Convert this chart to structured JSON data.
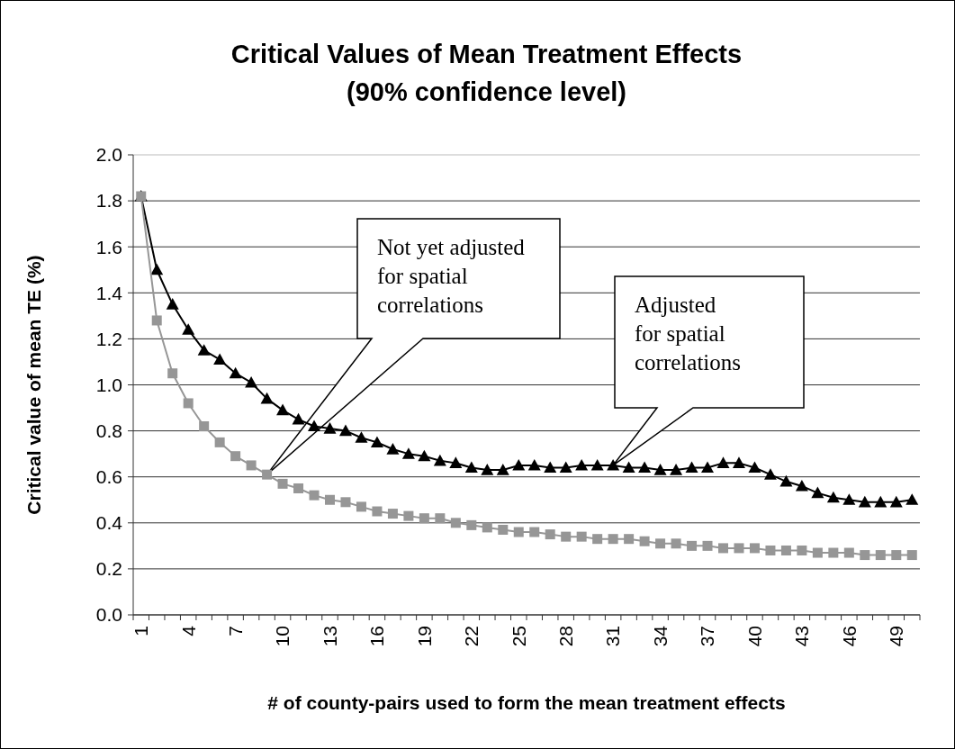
{
  "chart_data": {
    "type": "line",
    "title": "Critical Values of Mean Treatment Effects",
    "subtitle": "(90% confidence level)",
    "xlabel": "# of county-pairs used to form the mean treatment effects",
    "ylabel": "Critical value of mean TE (%)",
    "categories": [
      "1",
      null,
      null,
      "4",
      null,
      null,
      "7",
      null,
      null,
      "10",
      null,
      null,
      "13",
      null,
      null,
      "16",
      null,
      null,
      "19",
      null,
      null,
      "22",
      null,
      null,
      "25",
      null,
      null,
      "28",
      null,
      null,
      "31",
      null,
      null,
      "34",
      null,
      null,
      "37",
      null,
      null,
      "40",
      null,
      null,
      "43",
      null,
      null,
      "46",
      null,
      null,
      "49",
      null
    ],
    "series": [
      {
        "color": "#000000",
        "marker": "triangle",
        "values": [
          1.82,
          1.5,
          1.35,
          1.24,
          1.15,
          1.11,
          1.05,
          1.01,
          0.94,
          0.89,
          0.85,
          0.82,
          0.81,
          0.8,
          0.77,
          0.75,
          0.72,
          0.7,
          0.69,
          0.67,
          0.66,
          0.64,
          0.63,
          0.63,
          0.65,
          0.65,
          0.64,
          0.64,
          0.65,
          0.65,
          0.65,
          0.64,
          0.64,
          0.63,
          0.63,
          0.64,
          0.64,
          0.66,
          0.66,
          0.64,
          0.61,
          0.58,
          0.56,
          0.53,
          0.51,
          0.5,
          0.49,
          0.49,
          0.49,
          0.5
        ]
      },
      {
        "color": "#969696",
        "marker": "square",
        "values": [
          1.82,
          1.28,
          1.05,
          0.92,
          0.82,
          0.75,
          0.69,
          0.65,
          0.61,
          0.57,
          0.55,
          0.52,
          0.5,
          0.49,
          0.47,
          0.45,
          0.44,
          0.43,
          0.42,
          0.42,
          0.4,
          0.39,
          0.38,
          0.37,
          0.36,
          0.36,
          0.35,
          0.34,
          0.34,
          0.33,
          0.33,
          0.33,
          0.32,
          0.31,
          0.31,
          0.3,
          0.3,
          0.29,
          0.29,
          0.29,
          0.28,
          0.28,
          0.28,
          0.27,
          0.27,
          0.27,
          0.26,
          0.26,
          0.26,
          0.26
        ]
      }
    ],
    "ylim": [
      0,
      2
    ],
    "yticks": [
      {
        "value": 0,
        "label": "0.0"
      },
      0.2,
      0.4,
      0.6,
      0.8,
      {
        "value": 1,
        "label": "1.0"
      },
      1.2,
      1.4,
      1.6,
      1.8,
      {
        "value": 2,
        "label": "2.0"
      }
    ],
    "grid": "y",
    "line_style": "solid",
    "annotations": [
      "Not yet adjusted for spatial correlations",
      "Adjusted for spatial correlations"
    ]
  }
}
